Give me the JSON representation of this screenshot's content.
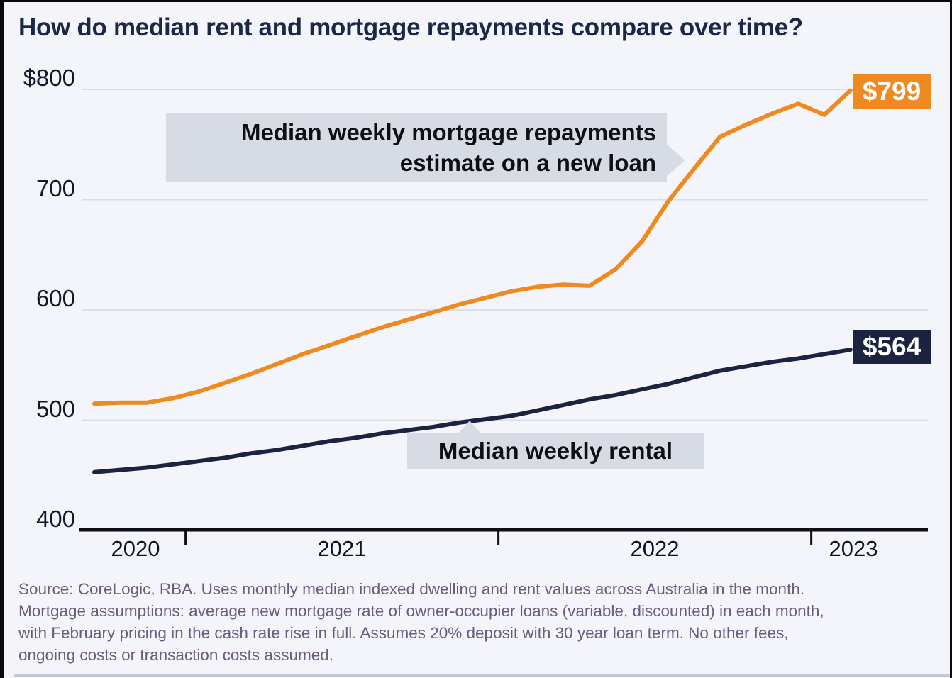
{
  "title": "How do median rent and mortgage repayments compare over time?",
  "chart_data": {
    "type": "line",
    "x": [
      "Sep 2020",
      "Oct 2020",
      "Nov 2020",
      "Dec 2020",
      "Jan 2021",
      "Feb 2021",
      "Mar 2021",
      "Apr 2021",
      "May 2021",
      "Jun 2021",
      "Jul 2021",
      "Aug 2021",
      "Sep 2021",
      "Oct 2021",
      "Nov 2021",
      "Dec 2021",
      "Jan 2022",
      "Feb 2022",
      "Mar 2022",
      "Apr 2022",
      "May 2022",
      "Jun 2022",
      "Jul 2022",
      "Aug 2022",
      "Sep 2022",
      "Oct 2022",
      "Nov 2022",
      "Dec 2022",
      "Jan 2023",
      "Feb 2023"
    ],
    "series": [
      {
        "name": "Median weekly mortgage repayments estimate on a new loan",
        "color": "#ee8a1f",
        "end_label": "$799",
        "values": [
          515,
          516,
          516,
          520,
          526,
          534,
          542,
          551,
          560,
          568,
          576,
          584,
          591,
          598,
          605,
          611,
          617,
          621,
          623,
          622,
          637,
          662,
          698,
          728,
          757,
          768,
          778,
          787,
          777,
          799
        ]
      },
      {
        "name": "Median weekly rental",
        "color": "#1b2340",
        "end_label": "$564",
        "values": [
          453,
          455,
          457,
          460,
          463,
          466,
          470,
          473,
          477,
          481,
          484,
          488,
          491,
          494,
          498,
          501,
          504,
          509,
          514,
          519,
          523,
          528,
          533,
          539,
          545,
          549,
          553,
          556,
          560,
          564
        ]
      }
    ],
    "y_ticks": [
      {
        "label": "$800",
        "value": 800
      },
      {
        "label": "700",
        "value": 700
      },
      {
        "label": "600",
        "value": 600
      },
      {
        "label": "500",
        "value": 500
      },
      {
        "label": "400",
        "value": 400
      }
    ],
    "x_labels": [
      "2020",
      "2021",
      "2022",
      "2023"
    ],
    "x_tick_years": [
      "2021",
      "2022",
      "2023"
    ],
    "ylim": [
      400,
      800
    ],
    "grid": "horizontal",
    "legend_position": "annotations-on-plot"
  },
  "annotations": {
    "mortgage": {
      "line1": "Median weekly mortgage repayments",
      "line2": "estimate on a new loan"
    },
    "rental": {
      "label": "Median weekly rental"
    }
  },
  "source": {
    "lines": [
      "Source: CoreLogic, RBA. Uses monthly median indexed dwelling and rent values across Australia in the month.",
      "Mortgage assumptions: average new mortgage rate of owner-occupier loans (variable, discounted) in each month,",
      "with February pricing in the cash rate rise in full. Assumes 20% deposit with 30 year loan term. No other fees,",
      "ongoing costs or transaction costs assumed."
    ]
  },
  "colors": {
    "mortgage_line": "#ee8a1f",
    "rental_line": "#1b2340",
    "title_text": "#1b2747",
    "axis_line": "#0d0d12",
    "gridline": "#d9dde6",
    "annotation_background": "#d4d8e2",
    "source_text": "#6d5b7e",
    "background": "#f4f5fa",
    "badge_text": "#ffffff"
  }
}
